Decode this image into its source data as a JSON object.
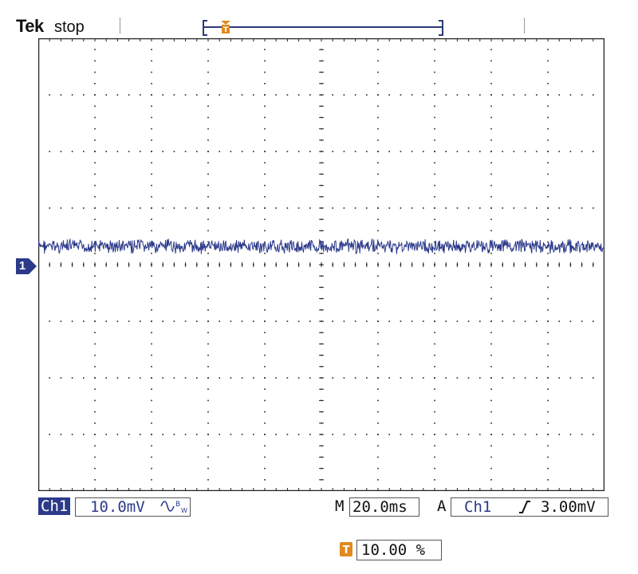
{
  "header": {
    "brand": "Tek",
    "acq_state": "stop"
  },
  "screen": {
    "divisions_x": 10,
    "divisions_y": 8,
    "grid_color": "#222222",
    "trace_color": "#2c3a8a",
    "accent_color": "#e08a1e"
  },
  "channel1": {
    "tag": "Ch1",
    "marker_label": "1",
    "scale": "10.0mV",
    "bandwidth_icon": "bandwidth-limit-icon",
    "trace_level_div": 0.35
  },
  "timebase": {
    "mode_label": "M",
    "value": "20.0ms"
  },
  "trigger": {
    "mode_label": "A",
    "source": "Ch1",
    "slope_icon": "rising-edge-icon",
    "level": "3.00mV"
  },
  "trigger_position": {
    "icon": "trigger-t-icon",
    "value": "10.00 %"
  },
  "record": {
    "trigger_position_fraction": 0.1
  }
}
